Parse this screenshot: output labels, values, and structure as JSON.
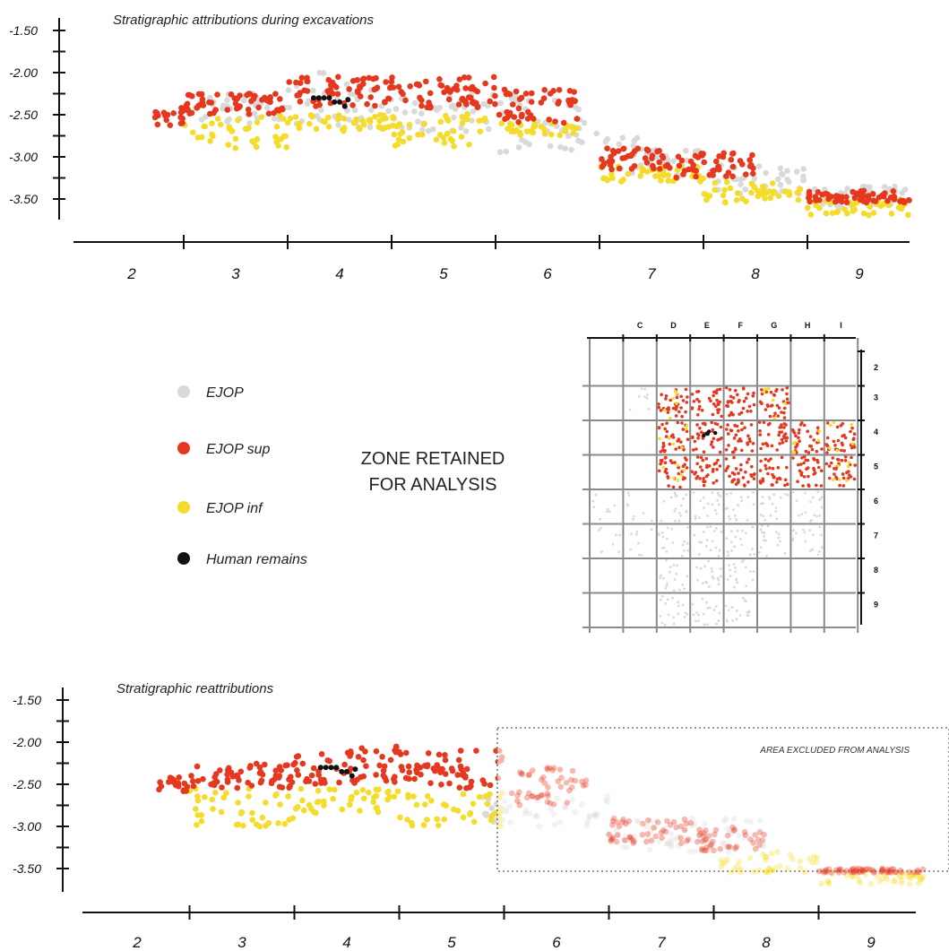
{
  "colors": {
    "ejop": "#d9d9d9",
    "ejop_sup": "#e5381f",
    "ejop_inf": "#f5dc2b",
    "human": "#111111",
    "grid": "#8a8a8a",
    "axis": "#111111"
  },
  "legend": [
    {
      "label": "EJOP",
      "color": "#d9d9d9"
    },
    {
      "label": "EJOP sup",
      "color": "#e5381f"
    },
    {
      "label": "EJOP inf",
      "color": "#f5dc2b"
    },
    {
      "label": "Human remains",
      "color": "#111111"
    }
  ],
  "zone_label": [
    "ZONE RETAINED",
    "FOR ANALYSIS"
  ],
  "excluded_label": "AREA EXCLUDED FROM ANALYSIS",
  "chart_data": [
    {
      "type": "scatter",
      "title": "Stratigraphic attributions during excavations",
      "xlabel": "",
      "ylabel": "",
      "x_ticks": [
        "2",
        "3",
        "4",
        "5",
        "6",
        "7",
        "8",
        "9"
      ],
      "y_ticks": [
        "-1.50",
        "-2.00",
        "-2.50",
        "-3.00",
        "-3.50"
      ],
      "xlim": [
        1.5,
        9.6
      ],
      "ylim": [
        -3.75,
        -1.4
      ],
      "grid": false,
      "series": [
        {
          "name": "EJOP",
          "color": "#d9d9d9",
          "bands": [
            {
              "x": [
                2.5,
                3.5
              ],
              "y": [
                -2.25,
                -2.6
              ]
            },
            {
              "x": [
                3.5,
                4.5
              ],
              "y": [
                -2.0,
                -2.65
              ]
            },
            {
              "x": [
                4.5,
                5.5
              ],
              "y": [
                -2.25,
                -2.7
              ]
            },
            {
              "x": [
                5.5,
                6.5
              ],
              "y": [
                -2.25,
                -2.95
              ]
            },
            {
              "x": [
                6.5,
                7.0
              ],
              "y": [
                -2.75,
                -3.2
              ]
            },
            {
              "x": [
                7.0,
                7.5
              ],
              "y": [
                -2.9,
                -3.25
              ]
            },
            {
              "x": [
                7.5,
                8.5
              ],
              "y": [
                -3.1,
                -3.45
              ]
            },
            {
              "x": [
                8.5,
                9.5
              ],
              "y": [
                -3.35,
                -3.6
              ]
            }
          ]
        },
        {
          "name": "EJOP sup",
          "color": "#e5381f",
          "bands": [
            {
              "x": [
                2.2,
                2.5
              ],
              "y": [
                -2.4,
                -2.65
              ]
            },
            {
              "x": [
                2.5,
                3.5
              ],
              "y": [
                -2.25,
                -2.5
              ]
            },
            {
              "x": [
                3.5,
                4.5
              ],
              "y": [
                -2.05,
                -2.4
              ]
            },
            {
              "x": [
                4.5,
                5.5
              ],
              "y": [
                -2.05,
                -2.45
              ]
            },
            {
              "x": [
                5.5,
                6.3
              ],
              "y": [
                -2.2,
                -2.6
              ]
            },
            {
              "x": [
                6.5,
                7.2
              ],
              "y": [
                -2.9,
                -3.15
              ]
            },
            {
              "x": [
                7.2,
                8.0
              ],
              "y": [
                -2.95,
                -3.25
              ]
            },
            {
              "x": [
                8.5,
                9.5
              ],
              "y": [
                -3.4,
                -3.55
              ]
            }
          ]
        },
        {
          "name": "EJOP inf",
          "color": "#f5dc2b",
          "bands": [
            {
              "x": [
                2.5,
                3.5
              ],
              "y": [
                -2.5,
                -2.9
              ]
            },
            {
              "x": [
                3.5,
                4.5
              ],
              "y": [
                -2.5,
                -2.7
              ]
            },
            {
              "x": [
                4.5,
                5.5
              ],
              "y": [
                -2.5,
                -2.9
              ]
            },
            {
              "x": [
                5.5,
                6.3
              ],
              "y": [
                -2.6,
                -2.75
              ]
            },
            {
              "x": [
                6.5,
                7.5
              ],
              "y": [
                -3.1,
                -3.3
              ]
            },
            {
              "x": [
                7.5,
                8.5
              ],
              "y": [
                -3.3,
                -3.55
              ]
            },
            {
              "x": [
                8.5,
                9.5
              ],
              "y": [
                -3.5,
                -3.7
              ]
            }
          ]
        },
        {
          "name": "Human remains",
          "color": "#111111",
          "points": [
            [
              3.75,
              -2.3
            ],
            [
              3.8,
              -2.3
            ],
            [
              3.85,
              -2.3
            ],
            [
              3.9,
              -2.3
            ],
            [
              3.95,
              -2.35
            ],
            [
              4.0,
              -2.35
            ],
            [
              4.05,
              -2.4
            ],
            [
              4.08,
              -2.32
            ]
          ]
        }
      ]
    },
    {
      "type": "scatter",
      "title": "",
      "x_ticks": [
        "C",
        "D",
        "E",
        "F",
        "G",
        "H",
        "I"
      ],
      "y_ticks": [
        "2",
        "3",
        "4",
        "5",
        "6",
        "7",
        "8",
        "9"
      ],
      "grid": true,
      "series": [
        {
          "name": "EJOP",
          "color": "#d9d9d9",
          "cells": [
            {
              "col": "B",
              "rows": [
                6,
                7
              ]
            },
            {
              "col": "C",
              "rows": [
                3,
                6,
                7
              ]
            },
            {
              "col": "D",
              "rows": [
                6,
                7,
                8,
                9
              ]
            },
            {
              "col": "E",
              "rows": [
                6,
                7,
                8,
                9
              ]
            },
            {
              "col": "F",
              "rows": [
                6,
                7,
                8,
                9
              ]
            },
            {
              "col": "G",
              "rows": [
                6,
                7
              ]
            },
            {
              "col": "H",
              "rows": [
                6,
                7
              ]
            }
          ]
        },
        {
          "name": "EJOP sup",
          "color": "#e5381f",
          "cells": [
            {
              "col": "D",
              "rows": [
                3,
                4,
                5
              ]
            },
            {
              "col": "E",
              "rows": [
                3,
                4,
                5
              ]
            },
            {
              "col": "F",
              "rows": [
                3,
                4,
                5
              ]
            },
            {
              "col": "G",
              "rows": [
                3,
                4,
                5
              ]
            },
            {
              "col": "H",
              "rows": [
                4,
                5
              ]
            },
            {
              "col": "I",
              "rows": [
                4,
                5
              ]
            }
          ]
        },
        {
          "name": "EJOP inf",
          "color": "#f5dc2b",
          "cells": [
            {
              "col": "D",
              "rows": [
                3,
                4,
                5
              ]
            },
            {
              "col": "G",
              "rows": [
                3
              ]
            },
            {
              "col": "H",
              "rows": [
                4
              ]
            },
            {
              "col": "I",
              "rows": [
                4,
                5
              ]
            }
          ]
        },
        {
          "name": "Human remains",
          "color": "#111111",
          "cells": [
            {
              "col": "E",
              "rows": [
                4
              ]
            }
          ]
        }
      ]
    },
    {
      "type": "scatter",
      "title": "Stratigraphic reattributions",
      "xlabel": "",
      "ylabel": "",
      "x_ticks": [
        "2",
        "3",
        "4",
        "5",
        "6",
        "7",
        "8",
        "9"
      ],
      "y_ticks": [
        "-1.50",
        "-2.00",
        "-2.50",
        "-3.00",
        "-3.50"
      ],
      "xlim": [
        1.5,
        9.6
      ],
      "ylim": [
        -3.75,
        -1.4
      ],
      "excluded_x": [
        5.5,
        9.6
      ],
      "excluded_y": [
        -1.95,
        -3.55
      ],
      "series": [
        {
          "name": "EJOP sup",
          "color": "#e5381f",
          "bands": [
            {
              "x": [
                2.2,
                2.5
              ],
              "y": [
                -2.4,
                -2.6
              ]
            },
            {
              "x": [
                2.5,
                3.5
              ],
              "y": [
                -2.25,
                -2.55
              ]
            },
            {
              "x": [
                3.5,
                4.5
              ],
              "y": [
                -2.05,
                -2.5
              ]
            },
            {
              "x": [
                4.5,
                5.5
              ],
              "y": [
                -2.1,
                -2.55
              ]
            },
            {
              "x": [
                5.5,
                6.3
              ],
              "y": [
                -2.3,
                -2.75
              ]
            },
            {
              "x": [
                6.5,
                7.3
              ],
              "y": [
                -2.9,
                -3.2
              ]
            },
            {
              "x": [
                7.3,
                8.0
              ],
              "y": [
                -3.0,
                -3.3
              ]
            },
            {
              "x": [
                8.5,
                9.5
              ],
              "y": [
                -3.5,
                -3.55
              ]
            }
          ]
        },
        {
          "name": "EJOP inf",
          "color": "#f5dc2b",
          "bands": [
            {
              "x": [
                2.5,
                3.5
              ],
              "y": [
                -2.55,
                -3.0
              ]
            },
            {
              "x": [
                3.5,
                4.5
              ],
              "y": [
                -2.55,
                -2.85
              ]
            },
            {
              "x": [
                4.5,
                5.5
              ],
              "y": [
                -2.6,
                -3.0
              ]
            },
            {
              "x": [
                7.5,
                8.5
              ],
              "y": [
                -3.3,
                -3.55
              ]
            },
            {
              "x": [
                8.5,
                9.5
              ],
              "y": [
                -3.55,
                -3.7
              ]
            }
          ]
        },
        {
          "name": "EJOP",
          "color": "#d9d9d9",
          "bands": [
            {
              "x": [
                5.3,
                6.5
              ],
              "y": [
                -2.6,
                -3.0
              ]
            },
            {
              "x": [
                6.5,
                8.0
              ],
              "y": [
                -2.9,
                -3.3
              ]
            }
          ]
        },
        {
          "name": "Human remains",
          "color": "#111111",
          "points": [
            [
              3.75,
              -2.3
            ],
            [
              3.8,
              -2.3
            ],
            [
              3.85,
              -2.3
            ],
            [
              3.9,
              -2.3
            ],
            [
              3.95,
              -2.35
            ],
            [
              4.0,
              -2.35
            ],
            [
              4.05,
              -2.4
            ],
            [
              4.08,
              -2.32
            ]
          ]
        }
      ]
    }
  ]
}
